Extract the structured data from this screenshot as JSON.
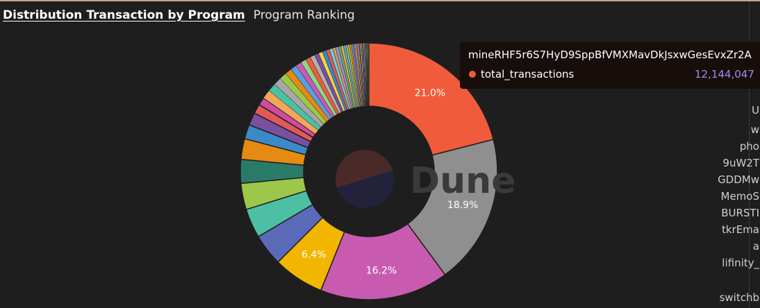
{
  "tabs": {
    "active": "Distribution Transaction by Program",
    "other": "Program Ranking"
  },
  "watermark": "Dune",
  "tooltip": {
    "title": "mineRHF5r6S7HyD9SppBfVMXMavDkJsxwGesEvxZr2A",
    "series": "total_transactions",
    "value": "12,144,047",
    "color": "#f05c3b"
  },
  "legend": {
    "items": [
      "U",
      "w",
      "pho",
      "9uW2T",
      "GDDMw",
      "MemoS",
      "BURSTI",
      "tkrEma",
      "a",
      "lifinity_",
      "switchb"
    ]
  },
  "chart_data": {
    "type": "pie",
    "variant": "donut",
    "title": "Distribution Transaction by Program",
    "series_name": "total_transactions",
    "labeled_slices": [
      {
        "label": "mineRHF5r6S7HyD9SppBfVMXMavDkJsxwGesEvxZr2A",
        "percent": 21.0,
        "value": 12144047,
        "color": "#f05c3b",
        "show_label": "21.0%"
      },
      {
        "label": "",
        "percent": 18.9,
        "color": "#8f8f8f",
        "show_label": "18.9%"
      },
      {
        "label": "",
        "percent": 16.2,
        "color": "#c85bb0",
        "show_label": "16.2%"
      },
      {
        "label": "",
        "percent": 6.4,
        "color": "#f2b600",
        "show_label": "6.4%"
      },
      {
        "label": "",
        "percent": 4.0,
        "color": "#5b6ab8",
        "show_label": ""
      },
      {
        "label": "",
        "percent": 3.7,
        "color": "#4dbfa3",
        "show_label": ""
      },
      {
        "label": "",
        "percent": 3.3,
        "color": "#9dc74a",
        "show_label": ""
      },
      {
        "label": "",
        "percent": 3.0,
        "color": "#2a7a6a",
        "show_label": ""
      },
      {
        "label": "",
        "percent": 2.6,
        "color": "#e58a12",
        "show_label": ""
      },
      {
        "label": "",
        "percent": 1.8,
        "color": "#3a8ac8",
        "show_label": ""
      },
      {
        "label": "",
        "percent": 1.6,
        "color": "#7a4fa0",
        "show_label": ""
      },
      {
        "label": "",
        "percent": 1.2,
        "color": "#e05a5a",
        "show_label": ""
      },
      {
        "label": "",
        "percent": 1.0,
        "color": "#d04aa0",
        "show_label": ""
      }
    ],
    "small_slices_palette": [
      "#f2a65a",
      "#4dbfa3",
      "#a7a7a7",
      "#9dc74a",
      "#e58a12",
      "#5b9ee0",
      "#c85bb0",
      "#8fd48a",
      "#f05c3b",
      "#b0b0b0",
      "#7a4fa0",
      "#f2d24a",
      "#3a8ac8",
      "#e05a5a",
      "#6fcfcf",
      "#d09a6a",
      "#a090e0",
      "#60b060"
    ],
    "small_slices_count": 40,
    "center": {
      "colors": [
        "#4a2a28",
        "#22223a"
      ]
    }
  }
}
